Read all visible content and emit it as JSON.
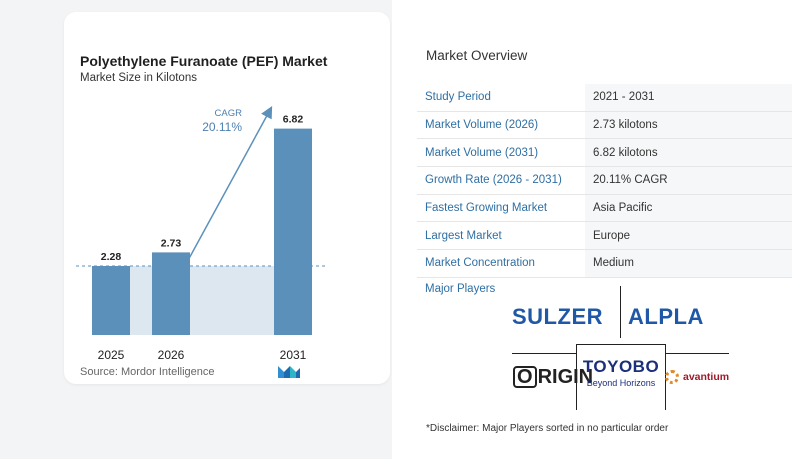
{
  "chart_data": {
    "type": "bar",
    "title": "Polyethylene Furanoate (PEF) Market",
    "subtitle": "Market Size in Kilotons",
    "categories": [
      "2025",
      "2026",
      "2031"
    ],
    "values": [
      2.28,
      2.73,
      6.82
    ],
    "value_labels": [
      "2.28",
      "2.73",
      "6.82"
    ],
    "cagr_label": "CAGR",
    "cagr_value": "20.11%",
    "ylim": [
      0,
      7.6
    ],
    "grid": false,
    "colors": {
      "bar": "#5b90bb",
      "bar_light": "#dde7f0",
      "arrow": "#5b90bb",
      "cagr_text": "#4d7fae"
    }
  },
  "source": "Source: Mordor Intelligence",
  "overview": {
    "title": "Market Overview",
    "rows": [
      {
        "label": "Study Period",
        "value": "2021 - 2031"
      },
      {
        "label": "Market Volume (2026)",
        "value": "2.73 kilotons"
      },
      {
        "label": "Market Volume (2031)",
        "value": "6.82 kilotons"
      },
      {
        "label": "Growth Rate (2026 - 2031)",
        "value": "20.11% CAGR"
      },
      {
        "label": "Fastest Growing Market",
        "value": "Asia Pacific"
      },
      {
        "label": "Largest Market",
        "value": "Europe"
      },
      {
        "label": "Market Concentration",
        "value": "Medium"
      }
    ]
  },
  "players": {
    "label": "Major Players",
    "logos": {
      "sulzer": "SULZER",
      "alpla": "ALPLA",
      "origin_first": "O",
      "origin_rest": "RIGIN",
      "toyobo": "TOYOBO",
      "toyobo_tagline": "Beyond Horizons",
      "avantium": "avantium"
    }
  },
  "disclaimer": "*Disclaimer: Major Players sorted in no particular order"
}
